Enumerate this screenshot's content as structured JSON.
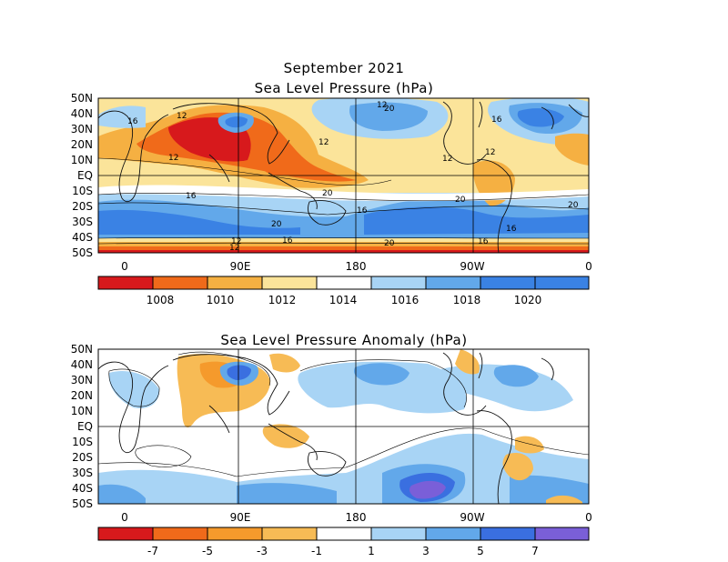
{
  "panel1": {
    "title_line1": "September 2021",
    "title_line2": "Sea Level Pressure (hPa)",
    "lat_labels": [
      "50N",
      "40N",
      "30N",
      "20N",
      "10N",
      "EQ",
      "10S",
      "20S",
      "30S",
      "40S",
      "50S"
    ],
    "lon_labels": [
      "0",
      "90E",
      "180",
      "90W",
      "0"
    ],
    "contour_labels": [
      "16",
      "12",
      "12",
      "20",
      "12",
      "16",
      "12",
      "12",
      "12",
      "20",
      "16",
      "20",
      "16",
      "20",
      "16",
      "20",
      "12",
      "16",
      "20",
      "16",
      "12"
    ],
    "colorbar": {
      "colors": [
        "#d7191c",
        "#f06a1a",
        "#f5b042",
        "#fbe49a",
        "#ffffff",
        "#a8d4f5",
        "#62a8ea",
        "#3a82e4"
      ],
      "labels": [
        "1008",
        "1010",
        "1012",
        "1014",
        "1016",
        "1018",
        "1020"
      ]
    }
  },
  "panel2": {
    "title": "Sea Level Pressure Anomaly (hPa)",
    "lat_labels": [
      "50N",
      "40N",
      "30N",
      "20N",
      "10N",
      "EQ",
      "10S",
      "20S",
      "30S",
      "40S",
      "50S"
    ],
    "lon_labels": [
      "0",
      "90E",
      "180",
      "90W",
      "0"
    ],
    "colorbar": {
      "colors": [
        "#d7191c",
        "#f06a1a",
        "#f59a2c",
        "#f7bb55",
        "#ffffff",
        "#a8d4f5",
        "#62a8ea",
        "#3a6fe0",
        "#7a5fd8"
      ],
      "labels": [
        "-7",
        "-5",
        "-3",
        "-1",
        "1",
        "3",
        "5",
        "7"
      ]
    }
  },
  "colors": {
    "frame": "#000000",
    "land_outline": "#111111"
  }
}
